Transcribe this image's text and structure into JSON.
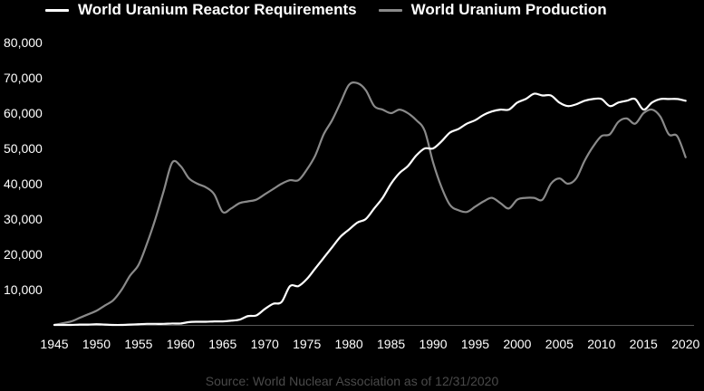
{
  "chart_data": {
    "type": "line",
    "title": "",
    "xlabel": "",
    "ylabel": "",
    "xlim": [
      1945,
      2021
    ],
    "ylim": [
      0,
      80000
    ],
    "grid": false,
    "legend_position": "top-left",
    "x_ticks": [
      1945,
      1950,
      1955,
      1960,
      1965,
      1970,
      1975,
      1980,
      1985,
      1990,
      1995,
      2000,
      2005,
      2010,
      2015,
      2020
    ],
    "x_tick_labels": [
      "1945",
      "1950",
      "1955",
      "1960",
      "1965",
      "1970",
      "1975",
      "1980",
      "1985",
      "1990",
      "1995",
      "2000",
      "2005",
      "2010",
      "2015",
      "2020"
    ],
    "y_ticks": [
      10000,
      20000,
      30000,
      40000,
      50000,
      60000,
      70000,
      80000
    ],
    "y_tick_labels": [
      "10,000",
      "20,000",
      "30,000",
      "40,000",
      "50,000",
      "60,000",
      "70,000",
      "80,000"
    ],
    "source": "Source: World Nuclear Association as of 12/31/2020",
    "series": [
      {
        "name": "World Uranium Reactor Requirements",
        "color": "#ffffff",
        "x": [
          1945,
          1946,
          1947,
          1948,
          1949,
          1950,
          1951,
          1952,
          1953,
          1954,
          1955,
          1956,
          1957,
          1958,
          1959,
          1960,
          1961,
          1962,
          1963,
          1964,
          1965,
          1966,
          1967,
          1968,
          1969,
          1970,
          1971,
          1972,
          1973,
          1974,
          1975,
          1976,
          1977,
          1978,
          1979,
          1980,
          1981,
          1982,
          1983,
          1984,
          1985,
          1986,
          1987,
          1988,
          1989,
          1990,
          1991,
          1992,
          1993,
          1994,
          1995,
          1996,
          1997,
          1998,
          1999,
          2000,
          2001,
          2002,
          2003,
          2004,
          2005,
          2006,
          2007,
          2008,
          2009,
          2010,
          2011,
          2012,
          2013,
          2014,
          2015,
          2016,
          2017,
          2018,
          2019,
          2020
        ],
        "values": [
          0,
          0,
          0,
          100,
          100,
          200,
          100,
          0,
          0,
          100,
          200,
          300,
          300,
          300,
          400,
          400,
          800,
          900,
          900,
          1000,
          1000,
          1200,
          1500,
          2500,
          2700,
          4500,
          6000,
          6500,
          11000,
          11000,
          13000,
          16000,
          19000,
          22000,
          25000,
          27000,
          29000,
          30000,
          33000,
          36000,
          40000,
          43000,
          45000,
          48000,
          50000,
          50000,
          52000,
          54500,
          55500,
          57000,
          58000,
          59500,
          60500,
          61000,
          61000,
          63000,
          64000,
          65500,
          65000,
          65000,
          63000,
          62000,
          62500,
          63500,
          64000,
          64000,
          62000,
          63000,
          63500,
          64000,
          61000,
          63000,
          64000,
          64000,
          64000,
          63500
        ]
      },
      {
        "name": "World Uranium Production",
        "color": "#8a8a8a",
        "x": [
          1945,
          1946,
          1947,
          1948,
          1949,
          1950,
          1951,
          1952,
          1953,
          1954,
          1955,
          1956,
          1957,
          1958,
          1959,
          1960,
          1961,
          1962,
          1963,
          1964,
          1965,
          1966,
          1967,
          1968,
          1969,
          1970,
          1971,
          1972,
          1973,
          1974,
          1975,
          1976,
          1977,
          1978,
          1979,
          1980,
          1981,
          1982,
          1983,
          1984,
          1985,
          1986,
          1987,
          1988,
          1989,
          1990,
          1991,
          1992,
          1993,
          1994,
          1995,
          1996,
          1997,
          1998,
          1999,
          2000,
          2001,
          2002,
          2003,
          2004,
          2005,
          2006,
          2007,
          2008,
          2009,
          2010,
          2011,
          2012,
          2013,
          2014,
          2015,
          2016,
          2017,
          2018,
          2019,
          2020
        ],
        "values": [
          0,
          500,
          1000,
          2000,
          3000,
          4000,
          5500,
          7000,
          10000,
          14000,
          17000,
          23000,
          30000,
          38000,
          46000,
          45000,
          41500,
          40000,
          39000,
          37000,
          32000,
          33000,
          34500,
          35000,
          35500,
          37000,
          38500,
          40000,
          41000,
          41000,
          44000,
          48000,
          54000,
          58000,
          63000,
          68000,
          68500,
          66500,
          62000,
          61000,
          60000,
          61000,
          60000,
          58000,
          55000,
          46000,
          39000,
          34000,
          32500,
          32000,
          33500,
          35000,
          36000,
          34500,
          33000,
          35500,
          36000,
          36000,
          35500,
          40000,
          41500,
          40000,
          41500,
          46500,
          50500,
          53500,
          54000,
          57500,
          58500,
          57000,
          60000,
          61000,
          59000,
          54000,
          53500,
          47500
        ]
      }
    ]
  }
}
